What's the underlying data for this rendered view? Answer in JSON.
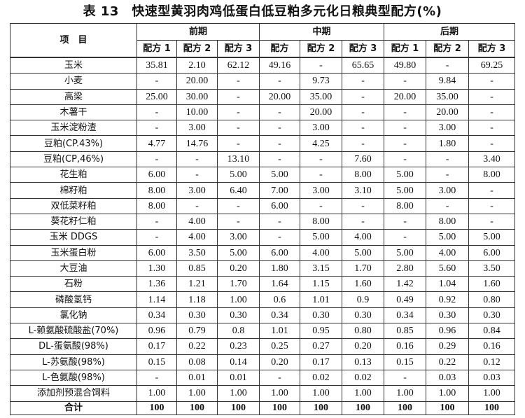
{
  "title": "表 13　快速型黄羽肉鸡低蛋白低豆粕多元化日粮典型配方(%)",
  "header": {
    "item": "项　目",
    "phases": [
      "前期",
      "中期",
      "后期"
    ],
    "formulas": [
      "配方 1",
      "配方 2",
      "配方 3",
      "配方",
      "配方 2",
      "配方 3",
      "配方 1",
      "配方 2",
      "配方 3"
    ]
  },
  "rows": [
    {
      "label": "玉米",
      "values": [
        "35.81",
        "2.10",
        "62.12",
        "49.16",
        "-",
        "65.65",
        "49.80",
        "-",
        "69.25"
      ]
    },
    {
      "label": "小麦",
      "values": [
        "-",
        "20.00",
        "-",
        "-",
        "9.73",
        "-",
        "-",
        "9.84",
        "-"
      ]
    },
    {
      "label": "高梁",
      "values": [
        "25.00",
        "30.00",
        "-",
        "20.00",
        "35.00",
        "-",
        "20.00",
        "35.00",
        "-"
      ]
    },
    {
      "label": "木薯干",
      "values": [
        "-",
        "10.00",
        "-",
        "-",
        "20.00",
        "-",
        "-",
        "20.00",
        "-"
      ]
    },
    {
      "label": "玉米淀粉渣",
      "values": [
        "-",
        "3.00",
        "-",
        "-",
        "3.00",
        "-",
        "-",
        "3.00",
        "-"
      ]
    },
    {
      "label": "豆粕(CP.43%)",
      "values": [
        "4.77",
        "14.76",
        "-",
        "-",
        "4.25",
        "-",
        "-",
        "1.80",
        "-"
      ]
    },
    {
      "label": "豆粕(CP,46%)",
      "values": [
        "-",
        "-",
        "13.10",
        "-",
        "-",
        "7.60",
        "-",
        "-",
        "3.40"
      ]
    },
    {
      "label": "花生粕",
      "values": [
        "6.00",
        "-",
        "5.00",
        "5.00",
        "-",
        "8.00",
        "5.00",
        "-",
        "8.00"
      ]
    },
    {
      "label": "棉籽粕",
      "values": [
        "8.00",
        "3.00",
        "6.40",
        "7.00",
        "3.00",
        "3.10",
        "5.00",
        "3.00",
        "-"
      ]
    },
    {
      "label": "双低菜籽粕",
      "values": [
        "8.00",
        "-",
        "-",
        "6.00",
        "-",
        "-",
        "8.00",
        "-",
        "-"
      ]
    },
    {
      "label": "葵花籽仁粕",
      "values": [
        "-",
        "4.00",
        "-",
        "-",
        "8.00",
        "-",
        "-",
        "8.00",
        "-"
      ]
    },
    {
      "label": "玉米 DDGS",
      "values": [
        "-",
        "4.00",
        "3.00",
        "-",
        "5.00",
        "4.00",
        "-",
        "5.00",
        "5.00"
      ]
    },
    {
      "label": "玉米蛋白粉",
      "values": [
        "6.00",
        "3.50",
        "5.00",
        "6.00",
        "4.00",
        "5.00",
        "5.00",
        "4.00",
        "6.00"
      ]
    },
    {
      "label": "大豆油",
      "values": [
        "1.30",
        "0.85",
        "0.20",
        "1.80",
        "3.15",
        "1.70",
        "2.80",
        "5.60",
        "3.50"
      ]
    },
    {
      "label": "石粉",
      "values": [
        "1.36",
        "1.21",
        "1.70",
        "1.64",
        "1.15",
        "1.60",
        "1.42",
        "1.04",
        "1.60"
      ]
    },
    {
      "label": "磷酸氢钙",
      "values": [
        "1.14",
        "1.18",
        "1.00",
        "0.6",
        "1.01",
        "0.9",
        "0.49",
        "0.92",
        "0.80"
      ]
    },
    {
      "label": "氯化钠",
      "values": [
        "0.34",
        "0.30",
        "0.30",
        "0.34",
        "0.30",
        "0.30",
        "0.34",
        "0.30",
        "0.30"
      ]
    },
    {
      "label": "L-赖氨酸硫酸盐(70%)",
      "values": [
        "0.96",
        "0.79",
        "0.8",
        "1.01",
        "0.95",
        "0.80",
        "0.85",
        "0.96",
        "0.84"
      ]
    },
    {
      "label": "DL-蛋氨酸(98%)",
      "values": [
        "0.17",
        "0.22",
        "0.23",
        "0.25",
        "0.27",
        "0.20",
        "0.16",
        "0.29",
        "0.16"
      ]
    },
    {
      "label": "L-苏氨酸(98%)",
      "values": [
        "0.15",
        "0.08",
        "0.14",
        "0.20",
        "0.17",
        "0.13",
        "0.15",
        "0.22",
        "0.12"
      ]
    },
    {
      "label": "L-色氨酸(98%)",
      "values": [
        "-",
        "0.01",
        "0.01",
        "-",
        "0.02",
        "0.02",
        "-",
        "0.03",
        "0.03"
      ]
    },
    {
      "label": "添加剂预混合饲料",
      "values": [
        "1.00",
        "1.00",
        "1.00",
        "1.00",
        "1.00",
        "1.00",
        "1.00",
        "1.00",
        "1.00"
      ]
    }
  ],
  "total": {
    "label": "合计",
    "values": [
      "100",
      "100",
      "100",
      "100",
      "100",
      "100",
      "100",
      "100",
      "100"
    ]
  }
}
